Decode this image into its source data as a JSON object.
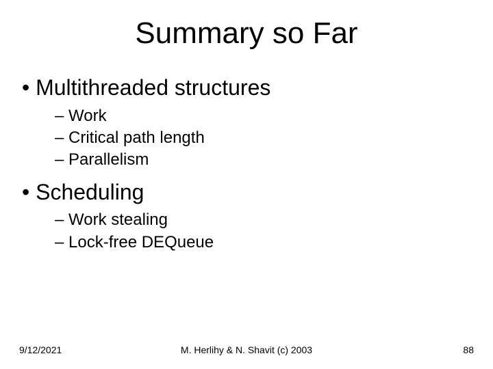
{
  "title": "Summary so Far",
  "bullets": [
    {
      "label": "Multithreaded structures",
      "sub": [
        "Work",
        "Critical path length",
        "Parallelism"
      ]
    },
    {
      "label": "Scheduling",
      "sub": [
        "Work stealing",
        "Lock-free DEQueue"
      ]
    }
  ],
  "footer": {
    "date": "9/12/2021",
    "author": "M. Herlihy & N. Shavit (c) 2003",
    "page": "88"
  },
  "style": {
    "background_color": "#ffffff",
    "text_color": "#000000",
    "font_family": "Comic Sans MS",
    "title_fontsize": 44,
    "level1_fontsize": 32,
    "level2_fontsize": 24,
    "footer_fontsize": 14,
    "level1_marker": "•",
    "level2_marker": "–"
  }
}
